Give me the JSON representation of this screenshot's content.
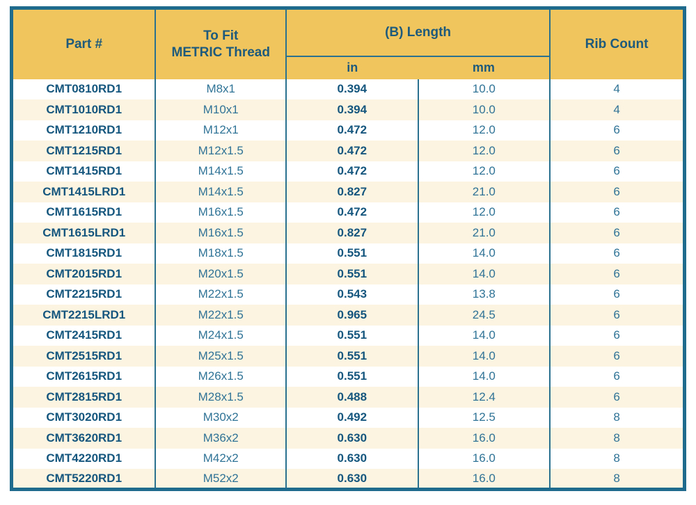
{
  "colors": {
    "gold": "#f0c55e",
    "cream": "#fdf3e1",
    "border": "#1e6b8e",
    "line": "#2a708f",
    "dark": "#14567d",
    "mid": "#2f7396"
  },
  "table": {
    "headers": {
      "part": "Part #",
      "thread": "To Fit\nMETRIC Thread",
      "length_group": "(B) Length",
      "length_in": "in",
      "length_mm": "mm",
      "rib": "Rib Count"
    },
    "rows": [
      {
        "part": "CMT0810RD1",
        "thread": "M8x1",
        "in": "0.394",
        "mm": "10.0",
        "rib": "4"
      },
      {
        "part": "CMT1010RD1",
        "thread": "M10x1",
        "in": "0.394",
        "mm": "10.0",
        "rib": "4"
      },
      {
        "part": "CMT1210RD1",
        "thread": "M12x1",
        "in": "0.472",
        "mm": "12.0",
        "rib": "6"
      },
      {
        "part": "CMT1215RD1",
        "thread": "M12x1.5",
        "in": "0.472",
        "mm": "12.0",
        "rib": "6"
      },
      {
        "part": "CMT1415RD1",
        "thread": "M14x1.5",
        "in": "0.472",
        "mm": "12.0",
        "rib": "6"
      },
      {
        "part": "CMT1415LRD1",
        "thread": "M14x1.5",
        "in": "0.827",
        "mm": "21.0",
        "rib": "6"
      },
      {
        "part": "CMT1615RD1",
        "thread": "M16x1.5",
        "in": "0.472",
        "mm": "12.0",
        "rib": "6"
      },
      {
        "part": "CMT1615LRD1",
        "thread": "M16x1.5",
        "in": "0.827",
        "mm": "21.0",
        "rib": "6"
      },
      {
        "part": "CMT1815RD1",
        "thread": "M18x1.5",
        "in": "0.551",
        "mm": "14.0",
        "rib": "6"
      },
      {
        "part": "CMT2015RD1",
        "thread": "M20x1.5",
        "in": "0.551",
        "mm": "14.0",
        "rib": "6"
      },
      {
        "part": "CMT2215RD1",
        "thread": "M22x1.5",
        "in": "0.543",
        "mm": "13.8",
        "rib": "6"
      },
      {
        "part": "CMT2215LRD1",
        "thread": "M22x1.5",
        "in": "0.965",
        "mm": "24.5",
        "rib": "6"
      },
      {
        "part": "CMT2415RD1",
        "thread": "M24x1.5",
        "in": "0.551",
        "mm": "14.0",
        "rib": "6"
      },
      {
        "part": "CMT2515RD1",
        "thread": "M25x1.5",
        "in": "0.551",
        "mm": "14.0",
        "rib": "6"
      },
      {
        "part": "CMT2615RD1",
        "thread": "M26x1.5",
        "in": "0.551",
        "mm": "14.0",
        "rib": "6"
      },
      {
        "part": "CMT2815RD1",
        "thread": "M28x1.5",
        "in": "0.488",
        "mm": "12.4",
        "rib": "6"
      },
      {
        "part": "CMT3020RD1",
        "thread": "M30x2",
        "in": "0.492",
        "mm": "12.5",
        "rib": "8"
      },
      {
        "part": "CMT3620RD1",
        "thread": "M36x2",
        "in": "0.630",
        "mm": "16.0",
        "rib": "8"
      },
      {
        "part": "CMT4220RD1",
        "thread": "M42x2",
        "in": "0.630",
        "mm": "16.0",
        "rib": "8"
      },
      {
        "part": "CMT5220RD1",
        "thread": "M52x2",
        "in": "0.630",
        "mm": "16.0",
        "rib": "8"
      }
    ]
  }
}
